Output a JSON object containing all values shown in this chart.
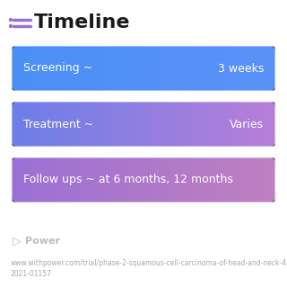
{
  "title": "Timeline",
  "background_color": "#ffffff",
  "icon_color": "#9b6fd4",
  "title_color": "#1a1a1a",
  "title_fontsize": 16,
  "rows": [
    {
      "left_text": "Screening ~",
      "right_text": "3 weeks",
      "color_left": "#4b8ff5",
      "color_right": "#5b92f8",
      "text_fontsize": 9
    },
    {
      "left_text": "Treatment ~",
      "right_text": "Varies",
      "color_left": "#6b7ee8",
      "color_right": "#b87fd8",
      "text_fontsize": 9
    },
    {
      "left_text": "Follow ups ~ at 6 months, 12 months",
      "right_text": "",
      "color_left": "#9b70d5",
      "color_right": "#c080c0",
      "text_fontsize": 9
    }
  ],
  "footer_logo_color": "#bbbbbb",
  "footer_text": "Power",
  "footer_fontsize": 8,
  "url_text": "www.withpower.com/trial/phase-2-squamous-cell-carcinoma-of-head-and-neck-4-\n2021-01157",
  "url_fontsize": 5.5
}
